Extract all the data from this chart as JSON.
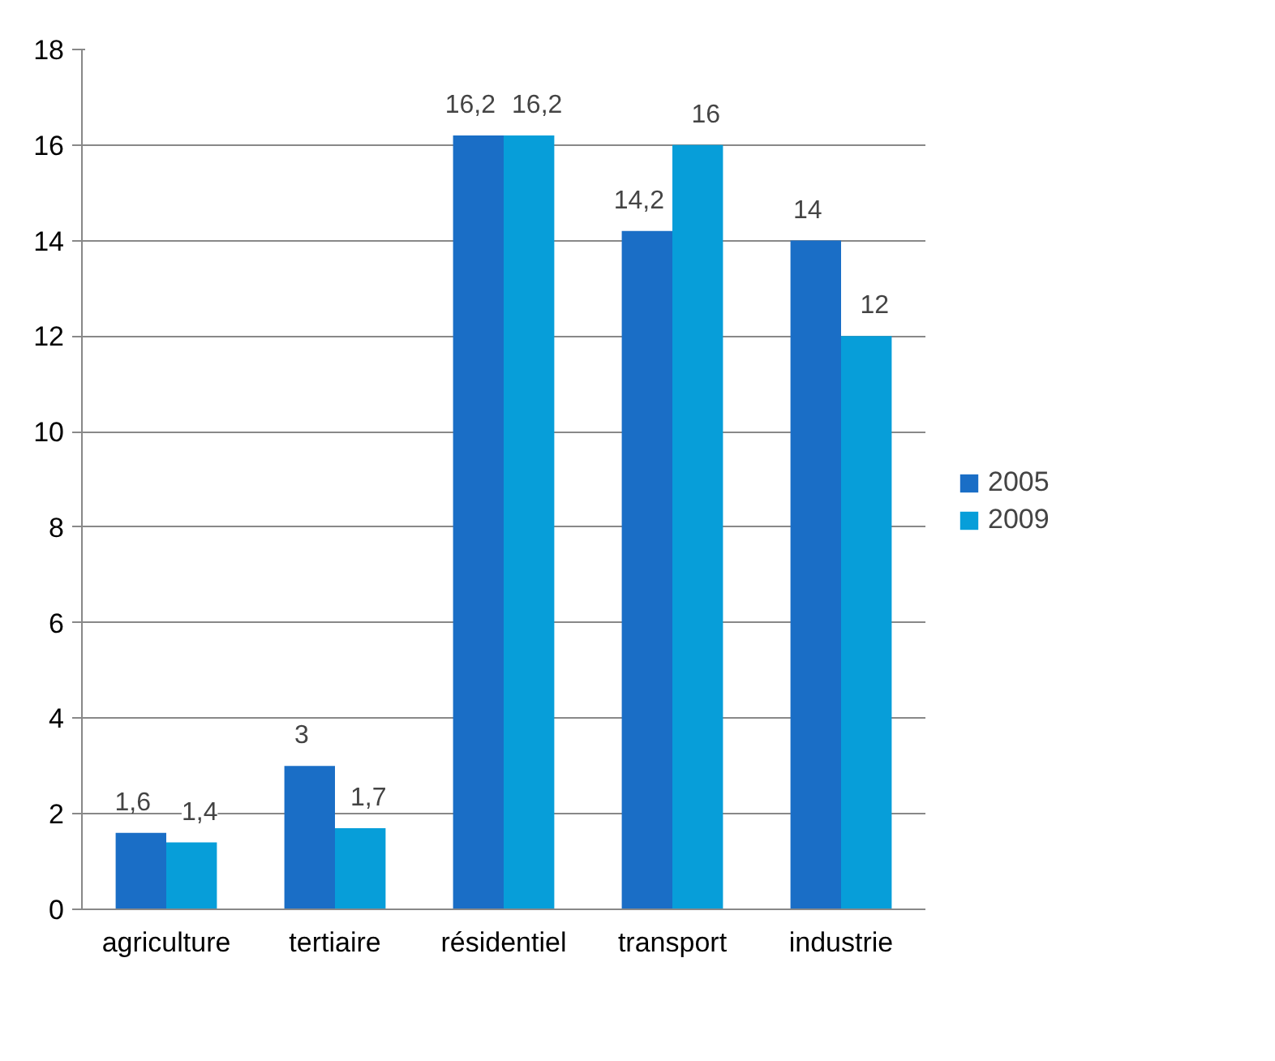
{
  "chart_data": {
    "type": "bar",
    "categories": [
      "agriculture",
      "tertiaire",
      "résidentiel",
      "transport",
      "industrie"
    ],
    "series": [
      {
        "name": "2005",
        "color": "#1a6ec6",
        "values": [
          1.6,
          3,
          16.2,
          14.2,
          14
        ],
        "value_labels": [
          "1,6",
          "3",
          "16,2",
          "14,2",
          "14"
        ]
      },
      {
        "name": "2009",
        "color": "#079ed9",
        "values": [
          1.4,
          1.7,
          16.2,
          16,
          12
        ],
        "value_labels": [
          "1,4",
          "1,7",
          "16,2",
          "16",
          "12"
        ]
      }
    ],
    "ylim": [
      0,
      18
    ],
    "yticks": [
      0,
      2,
      4,
      6,
      8,
      10,
      12,
      14,
      16,
      18
    ],
    "grid": "y",
    "legend": "right"
  }
}
